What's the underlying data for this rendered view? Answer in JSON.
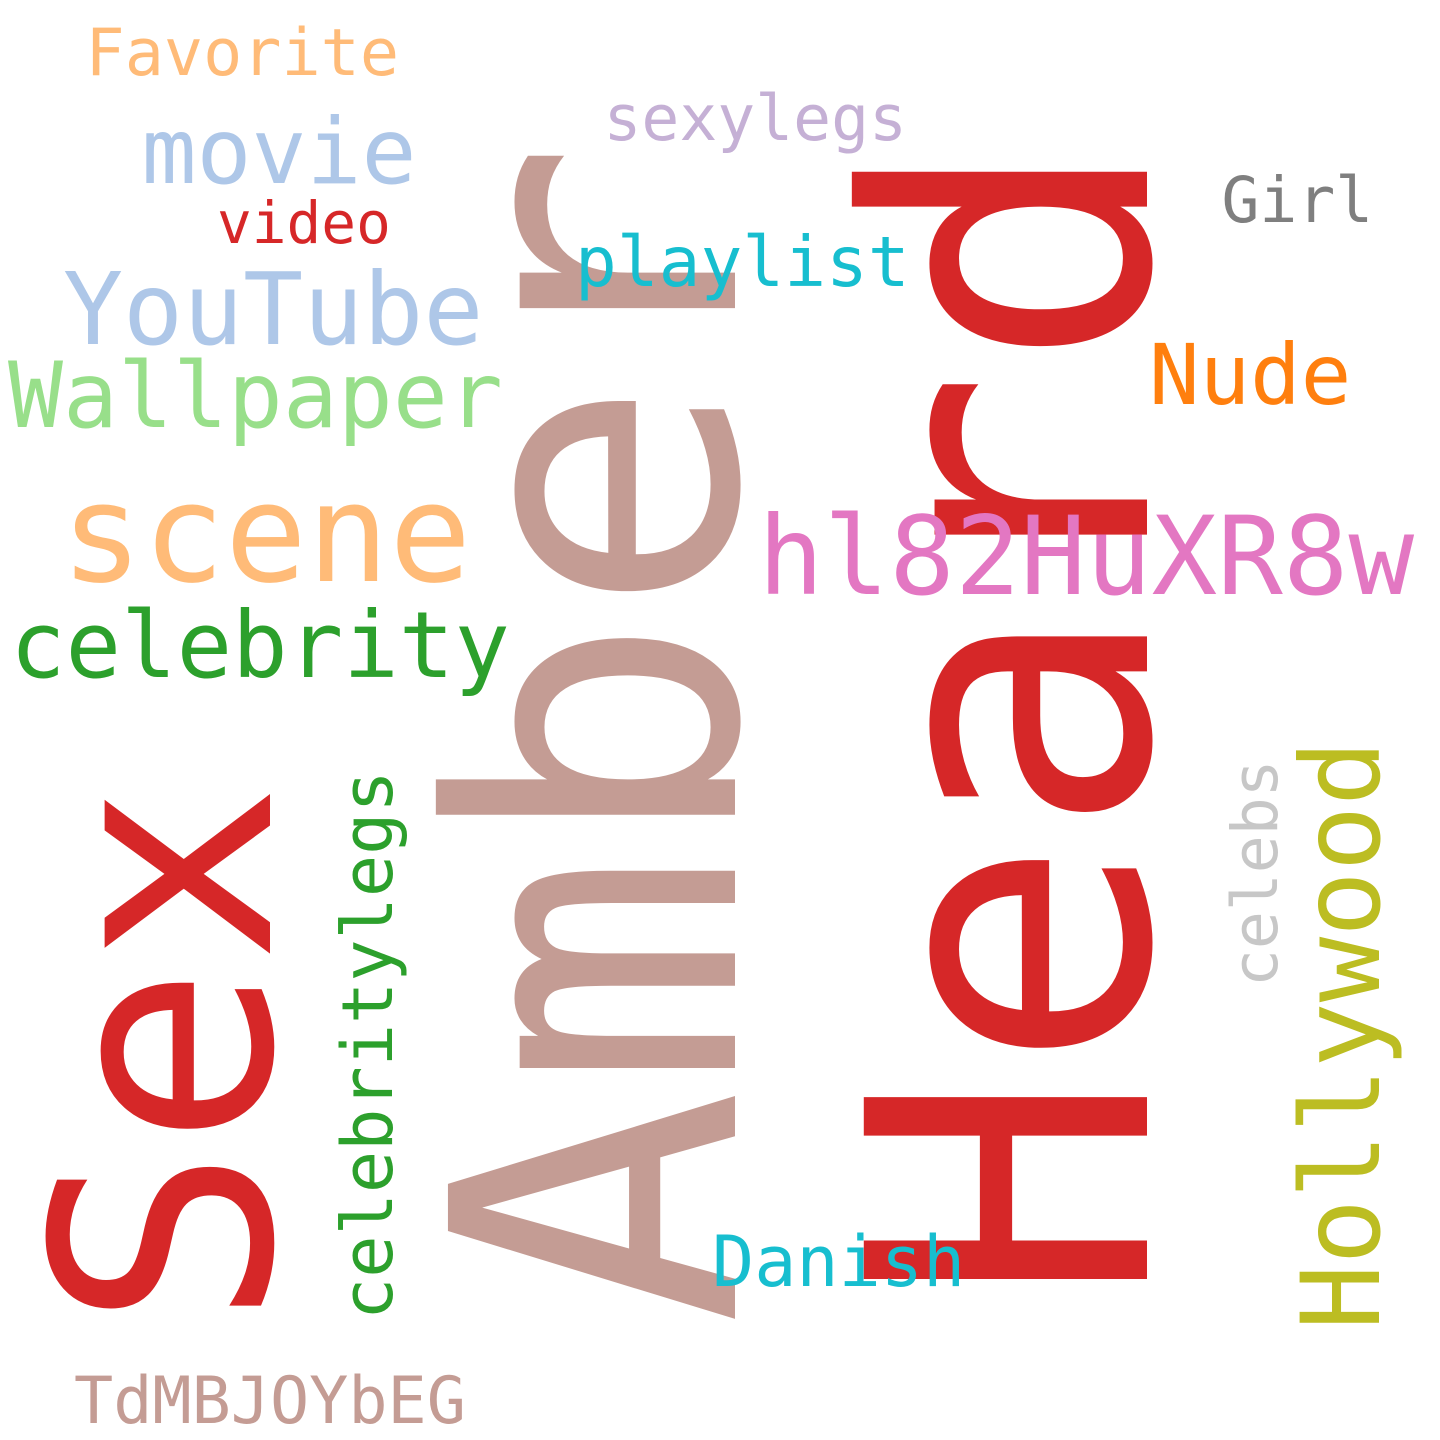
{
  "cloud": {
    "words": [
      {
        "text": "Heard",
        "color": "#d62728"
      },
      {
        "text": "Amber",
        "color": "#c49c94"
      },
      {
        "text": "Sex",
        "color": "#d62728"
      },
      {
        "text": "scene",
        "color": "#ffbb78"
      },
      {
        "text": "hl82HuXR8w",
        "color": "#e377c2"
      },
      {
        "text": "YouTube",
        "color": "#aec7e8"
      },
      {
        "text": "celebrity",
        "color": "#2ca02c"
      },
      {
        "text": "Wallpaper",
        "color": "#98df8a"
      },
      {
        "text": "Hollywood",
        "color": "#bcbd22"
      },
      {
        "text": "movie",
        "color": "#aec7e8"
      },
      {
        "text": "celebritylegs",
        "color": "#2ca02c"
      },
      {
        "text": "Nude",
        "color": "#ff7f0e"
      },
      {
        "text": "playlist",
        "color": "#17becf"
      },
      {
        "text": "Danish",
        "color": "#17becf"
      },
      {
        "text": "sexylegs",
        "color": "#c5b0d5"
      },
      {
        "text": "TdMBJOYbEG",
        "color": "#c49c94"
      },
      {
        "text": "Favorite",
        "color": "#ffbb78"
      },
      {
        "text": "celebs",
        "color": "#c7c7c7"
      },
      {
        "text": "Girl",
        "color": "#7f7f7f"
      },
      {
        "text": "video",
        "color": "#d62728"
      }
    ]
  }
}
